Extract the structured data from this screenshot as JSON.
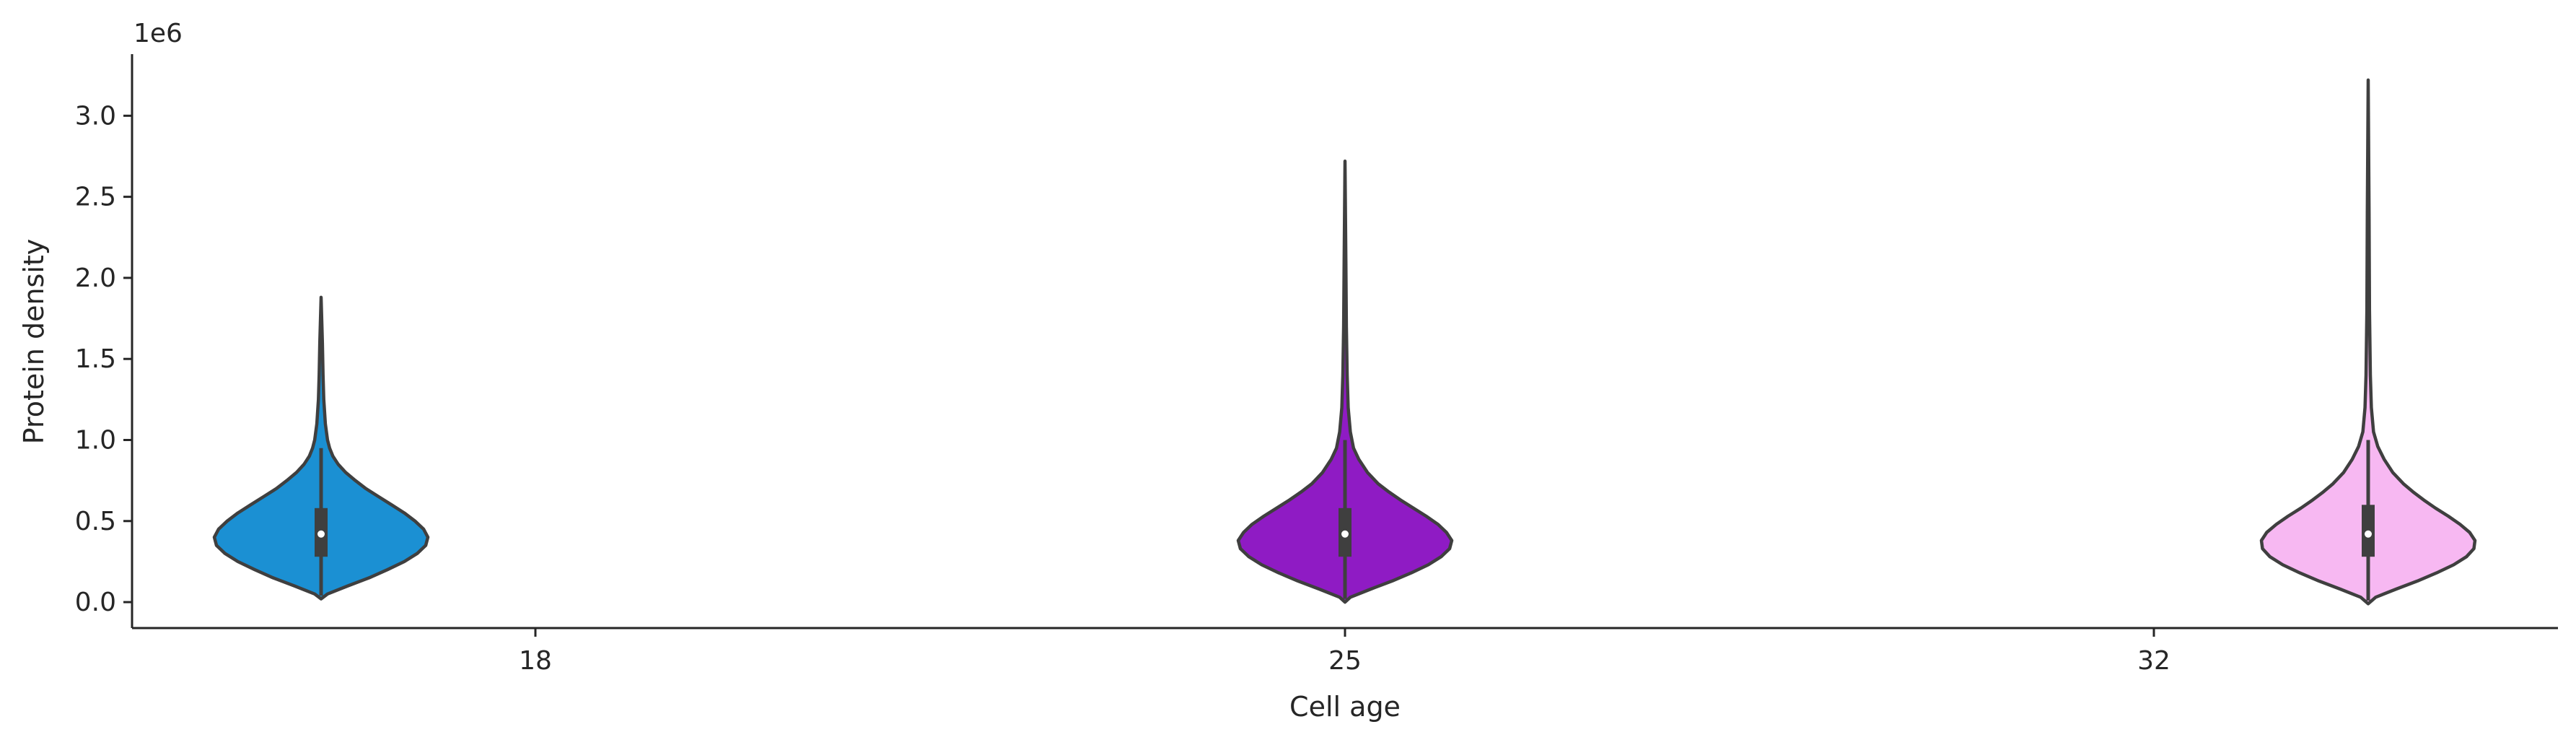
{
  "chart_data": {
    "type": "violin",
    "xlabel": "Cell age",
    "ylabel": "Protein density",
    "y_offset_text": "1e6",
    "ylim": [
      -0.16,
      3.38
    ],
    "yticks": [
      0.0,
      0.5,
      1.0,
      1.5,
      2.0,
      2.5,
      3.0
    ],
    "ytick_labels": [
      "0.0",
      "0.5",
      "1.0",
      "1.5",
      "2.0",
      "2.5",
      "3.0"
    ],
    "xtick_labels": [
      "18",
      "25",
      "32"
    ],
    "grid": false,
    "legend": "none",
    "colors": {
      "axis": "#262626",
      "violin_outline": "#3f3f3f",
      "box": "#3f3f3f",
      "median": "#ffffff"
    },
    "violins": [
      {
        "category": "18",
        "color": "#1b90d3",
        "min": 0.02,
        "q1": 0.28,
        "median": 0.42,
        "q3": 0.58,
        "whisker_high": 0.95,
        "max": 1.88,
        "profile": [
          [
            0.02,
            0.0
          ],
          [
            0.05,
            0.06
          ],
          [
            0.1,
            0.25
          ],
          [
            0.15,
            0.45
          ],
          [
            0.2,
            0.62
          ],
          [
            0.25,
            0.78
          ],
          [
            0.3,
            0.9
          ],
          [
            0.35,
            0.98
          ],
          [
            0.4,
            1.0
          ],
          [
            0.45,
            0.96
          ],
          [
            0.5,
            0.88
          ],
          [
            0.55,
            0.78
          ],
          [
            0.6,
            0.66
          ],
          [
            0.65,
            0.54
          ],
          [
            0.7,
            0.42
          ],
          [
            0.75,
            0.32
          ],
          [
            0.8,
            0.23
          ],
          [
            0.85,
            0.16
          ],
          [
            0.9,
            0.11
          ],
          [
            0.95,
            0.08
          ],
          [
            1.0,
            0.06
          ],
          [
            1.1,
            0.04
          ],
          [
            1.25,
            0.025
          ],
          [
            1.4,
            0.018
          ],
          [
            1.6,
            0.012
          ],
          [
            1.88,
            0.0
          ]
        ]
      },
      {
        "category": "25",
        "color": "#8f1bc4",
        "min": 0.0,
        "q1": 0.28,
        "median": 0.42,
        "q3": 0.58,
        "whisker_high": 1.0,
        "max": 2.72,
        "profile": [
          [
            0.0,
            0.0
          ],
          [
            0.03,
            0.05
          ],
          [
            0.08,
            0.24
          ],
          [
            0.13,
            0.44
          ],
          [
            0.18,
            0.62
          ],
          [
            0.23,
            0.78
          ],
          [
            0.28,
            0.9
          ],
          [
            0.33,
            0.98
          ],
          [
            0.38,
            1.0
          ],
          [
            0.43,
            0.95
          ],
          [
            0.48,
            0.87
          ],
          [
            0.53,
            0.76
          ],
          [
            0.58,
            0.64
          ],
          [
            0.63,
            0.52
          ],
          [
            0.68,
            0.41
          ],
          [
            0.73,
            0.31
          ],
          [
            0.8,
            0.21
          ],
          [
            0.88,
            0.13
          ],
          [
            0.95,
            0.08
          ],
          [
            1.05,
            0.05
          ],
          [
            1.2,
            0.03
          ],
          [
            1.4,
            0.02
          ],
          [
            1.7,
            0.013
          ],
          [
            2.1,
            0.008
          ],
          [
            2.72,
            0.0
          ]
        ]
      },
      {
        "category": "32",
        "color": "#f7b8f2",
        "min": -0.01,
        "q1": 0.28,
        "median": 0.42,
        "q3": 0.6,
        "whisker_high": 1.0,
        "max": 3.22,
        "profile": [
          [
            -0.01,
            0.0
          ],
          [
            0.03,
            0.07
          ],
          [
            0.08,
            0.26
          ],
          [
            0.13,
            0.46
          ],
          [
            0.18,
            0.64
          ],
          [
            0.23,
            0.8
          ],
          [
            0.28,
            0.92
          ],
          [
            0.33,
            0.99
          ],
          [
            0.38,
            1.0
          ],
          [
            0.43,
            0.95
          ],
          [
            0.48,
            0.86
          ],
          [
            0.53,
            0.75
          ],
          [
            0.58,
            0.63
          ],
          [
            0.63,
            0.52
          ],
          [
            0.68,
            0.42
          ],
          [
            0.73,
            0.33
          ],
          [
            0.8,
            0.23
          ],
          [
            0.88,
            0.15
          ],
          [
            0.96,
            0.09
          ],
          [
            1.05,
            0.05
          ],
          [
            1.2,
            0.03
          ],
          [
            1.4,
            0.02
          ],
          [
            1.8,
            0.012
          ],
          [
            2.4,
            0.008
          ],
          [
            3.22,
            0.0
          ]
        ]
      }
    ]
  }
}
